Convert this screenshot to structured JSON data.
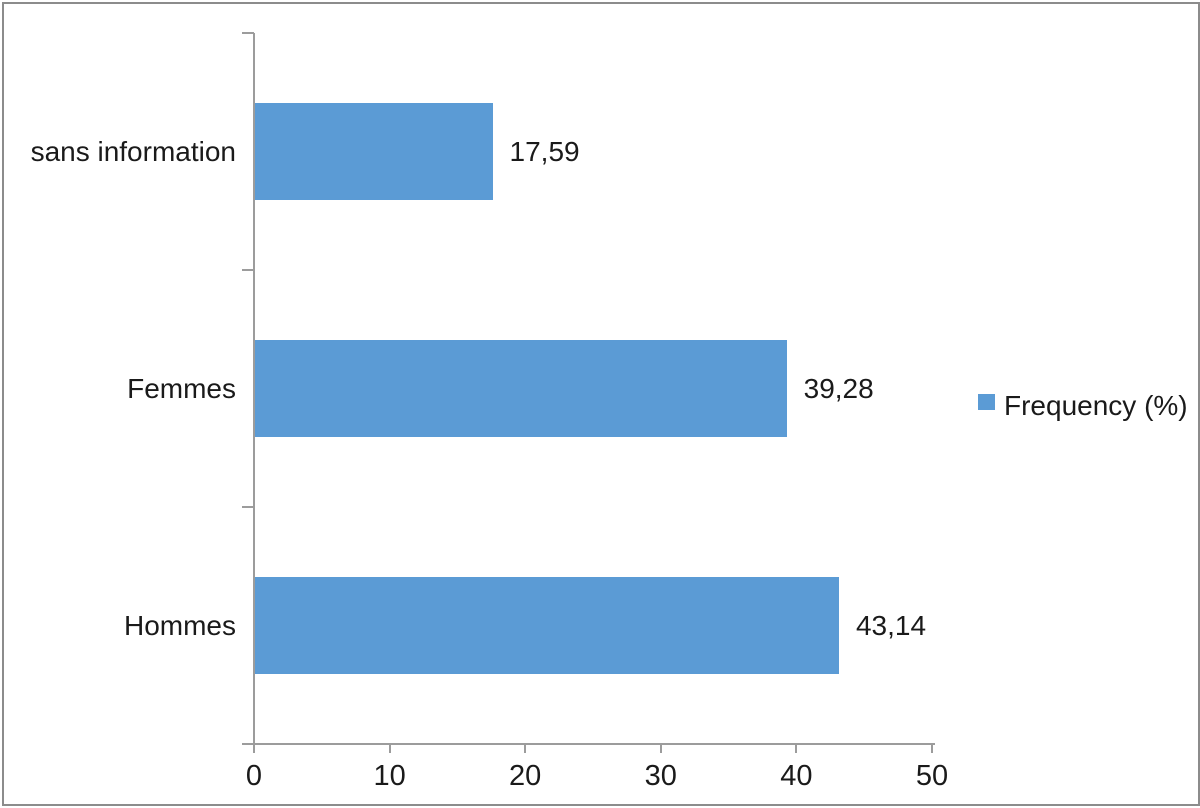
{
  "chart_data": {
    "type": "bar",
    "orientation": "horizontal",
    "categories": [
      "sans information",
      "Femmes",
      "Hommes"
    ],
    "values": [
      17.59,
      39.28,
      43.14
    ],
    "value_labels": [
      "17,59",
      "39,28",
      "43,14"
    ],
    "series": [
      {
        "name": "Frequency (%)",
        "values": [
          17.59,
          39.28,
          43.14
        ]
      }
    ],
    "x_ticks": [
      "0",
      "10",
      "20",
      "30",
      "40",
      "50"
    ],
    "xlim": [
      0,
      50
    ],
    "xlabel": "",
    "ylabel": "",
    "title": "",
    "grid": false,
    "legend_position": "right",
    "legend_label": "Frequency (%)"
  },
  "colors": {
    "bar": "#5B9BD5",
    "axis": "#9c9c9c",
    "frame_border": "#8c8c8c",
    "text": "#1a1a1a",
    "background": "#ffffff"
  }
}
